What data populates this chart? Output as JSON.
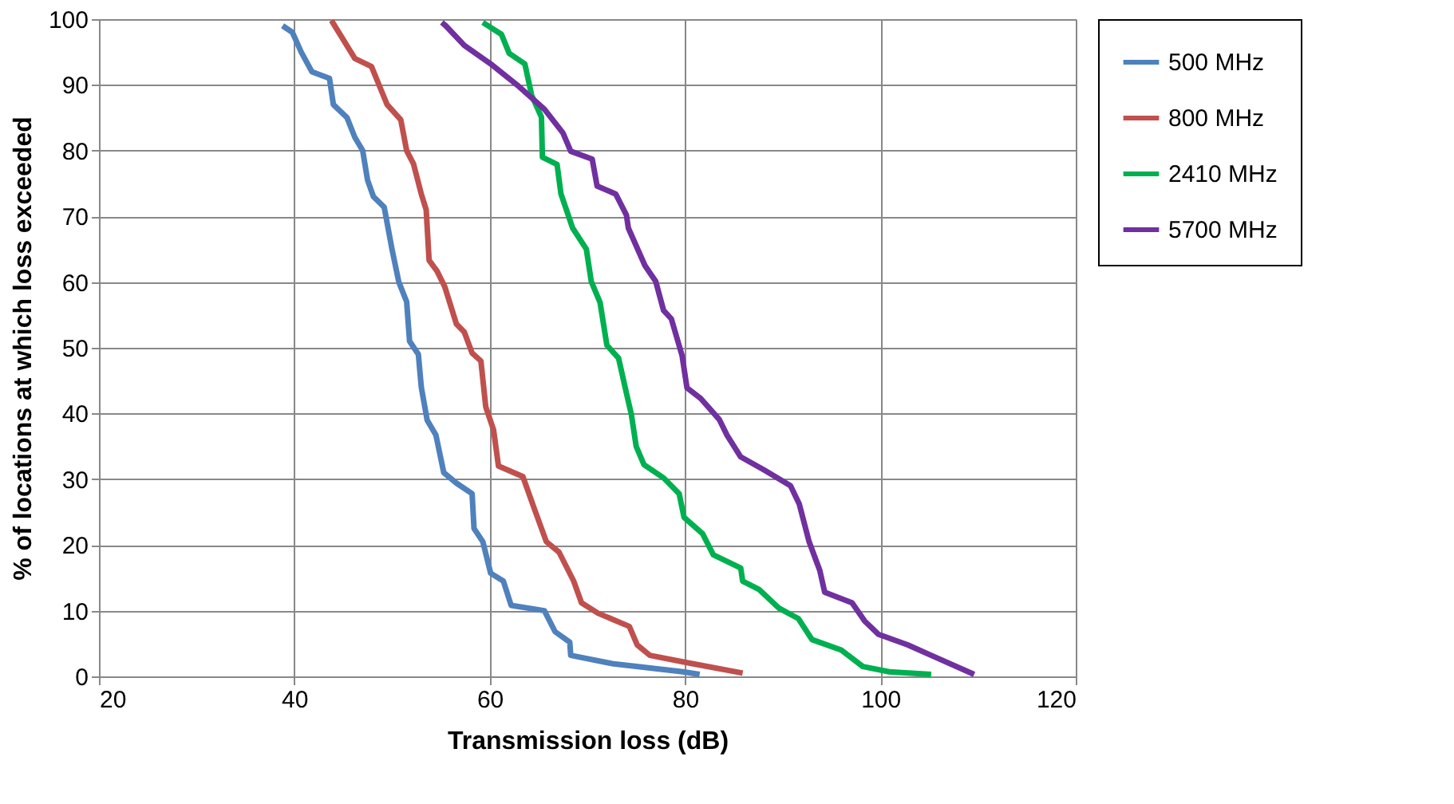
{
  "chart_data": {
    "type": "line",
    "xlabel": "Transmission loss (dB)",
    "ylabel": "% of locations at which loss exceeded",
    "xlim": [
      20,
      120
    ],
    "xticks": [
      20,
      40,
      60,
      80,
      100,
      120
    ],
    "ylim": [
      0,
      100
    ],
    "yticks": [
      0,
      10,
      20,
      30,
      40,
      50,
      60,
      70,
      80,
      90,
      100
    ],
    "grid": true,
    "legend": "right",
    "marker": "none",
    "line_style": "solid",
    "series": [
      {
        "name": "500 MHz",
        "color": "#4f81bd",
        "x": [
          38.8,
          39.8,
          40.7,
          41.8,
          43.6,
          44.0,
          45.4,
          46.2,
          47.0,
          47.5,
          48.1,
          49.2,
          50.0,
          50.7,
          51.5,
          51.8,
          52.7,
          53.0,
          53.6,
          54.5,
          55.3,
          56.6,
          58.2,
          58.4,
          59.3,
          60.1,
          61.4,
          62.2,
          65.6,
          66.7,
          68.2,
          68.3,
          72.7,
          79.8,
          81.5
        ],
        "values": [
          99,
          98,
          95,
          92,
          91,
          87,
          85,
          82,
          80,
          75.5,
          73,
          71.4,
          65,
          60,
          57,
          51,
          49,
          44,
          39,
          36.7,
          31,
          29.4,
          27.8,
          22.5,
          20.5,
          15.7,
          14.5,
          10.8,
          10,
          6.8,
          5.2,
          3.2,
          1.9,
          0.7,
          0.3
        ]
      },
      {
        "name": "800 MHz",
        "color": "#c0504d",
        "x": [
          43.8,
          46.2,
          47.9,
          49.0,
          49.5,
          50.9,
          51.5,
          52.2,
          53.0,
          53.5,
          53.8,
          54.6,
          55.4,
          56.6,
          57.4,
          58.2,
          59.1,
          59.6,
          60.4,
          60.9,
          63.4,
          64.5,
          65.8,
          67.1,
          68.6,
          69.4,
          71.1,
          74.3,
          75.1,
          76.4,
          80.2,
          85.9
        ],
        "values": [
          99.8,
          94,
          92.8,
          88.8,
          87,
          84.7,
          80,
          78,
          73.4,
          71,
          63.3,
          61.7,
          59.3,
          53.6,
          52.4,
          49.2,
          48,
          41,
          37.5,
          32,
          30.4,
          25.8,
          20.5,
          18.9,
          14.5,
          11.2,
          9.6,
          7.6,
          4.8,
          3.2,
          2.1,
          0.5
        ]
      },
      {
        "name": "2410 MHz",
        "color": "#00b050",
        "x": [
          59.3,
          61.2,
          62.0,
          63.6,
          64.3,
          65.3,
          65.4,
          66.9,
          67.3,
          68.5,
          69.9,
          70.4,
          71.3,
          72.0,
          73.2,
          74.0,
          74.5,
          75.0,
          75.8,
          77.8,
          79.4,
          79.9,
          81.8,
          82.9,
          85.7,
          85.9,
          87.6,
          89.6,
          91.6,
          93.0,
          96.0,
          98.2,
          100.9,
          105.2
        ],
        "values": [
          99.5,
          97.7,
          94.8,
          93.2,
          88.4,
          85.1,
          79,
          77.9,
          73.4,
          68.2,
          65,
          60.1,
          56.9,
          50.4,
          48.4,
          43.1,
          39.9,
          35,
          32.2,
          30.2,
          27.8,
          24.2,
          21.7,
          18.5,
          16.5,
          14.5,
          13.2,
          10.4,
          8.8,
          5.6,
          4,
          1.5,
          0.7,
          0.3
        ]
      },
      {
        "name": "5700 MHz",
        "color": "#7030a0",
        "x": [
          55.1,
          55.5,
          57.4,
          60.1,
          62.8,
          65.6,
          67.5,
          68.3,
          70.5,
          71.0,
          72.9,
          74.0,
          74.2,
          75.9,
          77.0,
          77.8,
          78.6,
          79.7,
          80.2,
          81.6,
          83.5,
          84.3,
          85.7,
          88.1,
          90.8,
          91.7,
          92.7,
          93.8,
          94.3,
          97.1,
          98.4,
          99.8,
          102.8,
          105.2,
          109.6
        ],
        "values": [
          99.5,
          99,
          96,
          93.2,
          90,
          86.3,
          82.7,
          79.9,
          78.7,
          74.6,
          73.4,
          70.2,
          68.2,
          62.5,
          60.1,
          55.7,
          54.4,
          48.8,
          43.9,
          42.3,
          39.1,
          36.7,
          33.4,
          31.4,
          29,
          26.2,
          20.5,
          16.1,
          12.8,
          11.2,
          8.4,
          6.4,
          4.8,
          3.2,
          0.3
        ]
      }
    ]
  }
}
